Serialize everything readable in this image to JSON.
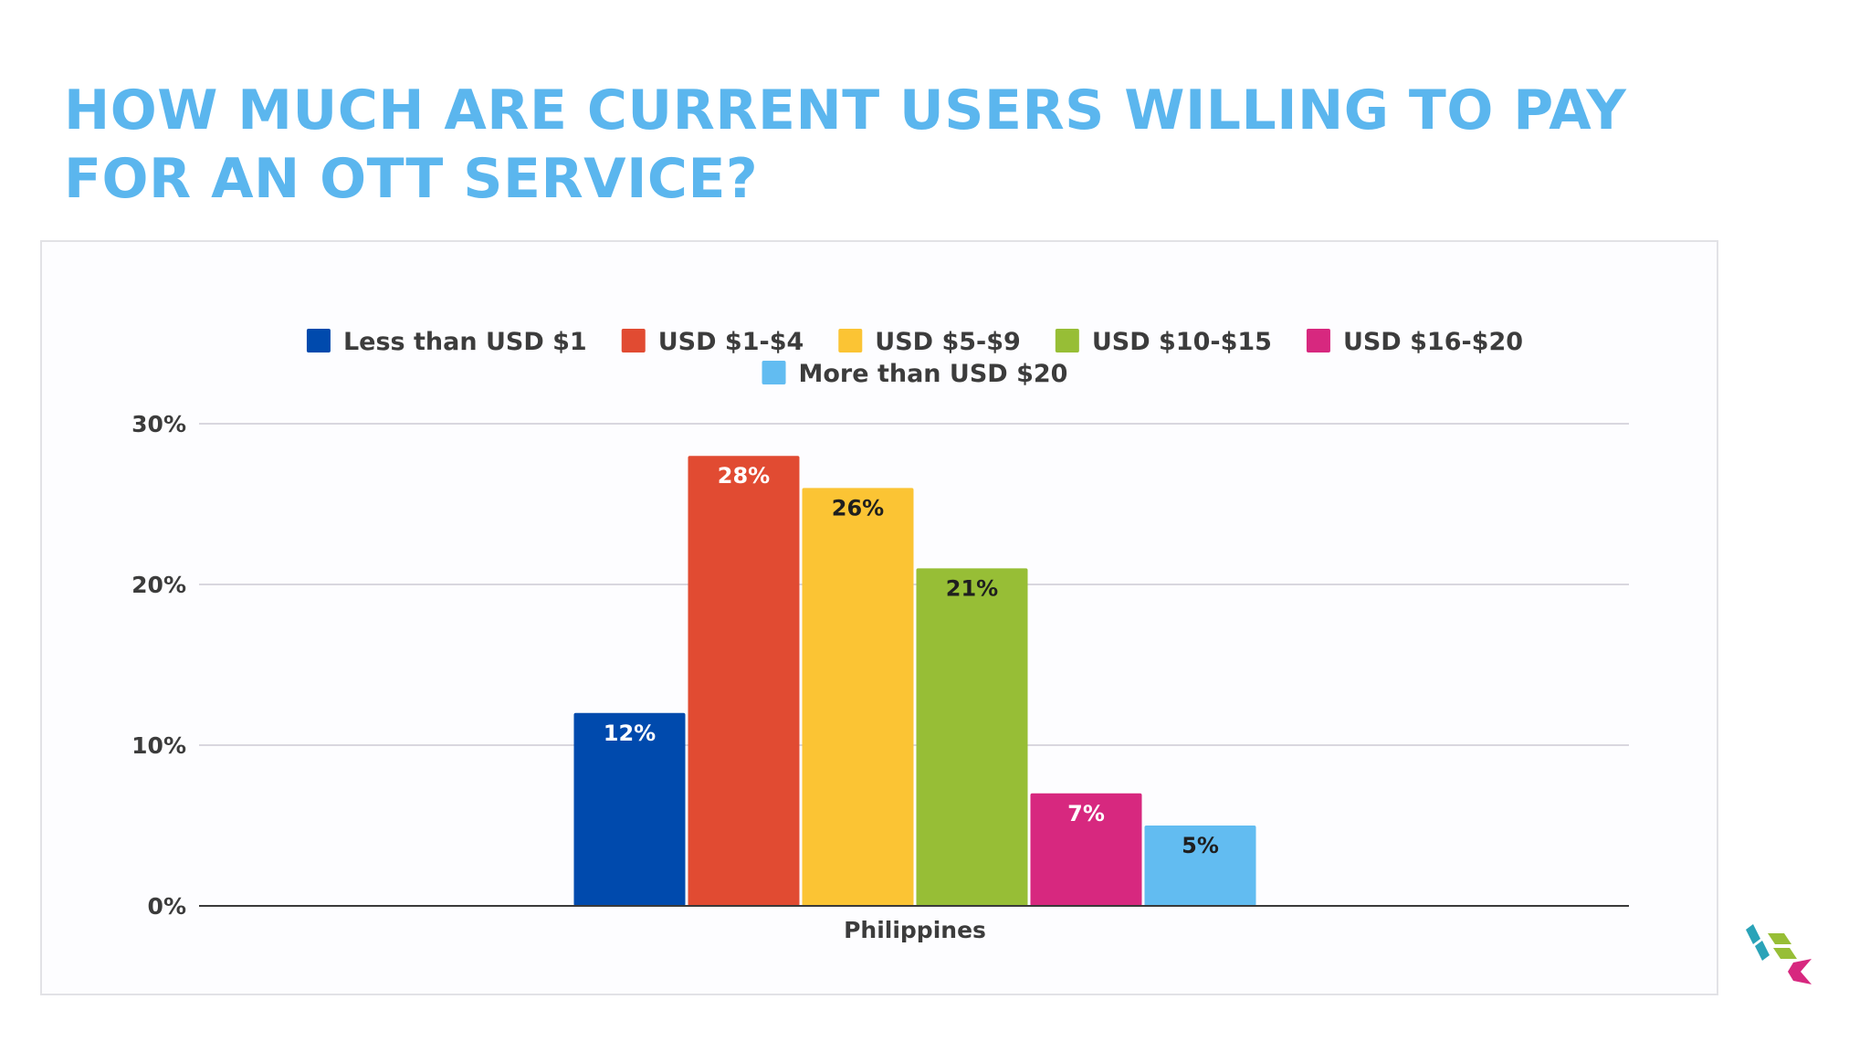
{
  "slide": {
    "title": "HOW MUCH ARE CURRENT USERS WILLING TO PAY FOR AN OTT SERVICE?"
  },
  "chart_data": {
    "type": "bar",
    "title": "",
    "xlabel": "",
    "ylabel": "",
    "categories": [
      "Philippines"
    ],
    "series": [
      {
        "name": "Less than USD $1",
        "values": [
          12
        ],
        "label": "12%",
        "color": "#004aad",
        "label_color": "#ffffff"
      },
      {
        "name": "USD $1-$4",
        "values": [
          28
        ],
        "label": "28%",
        "color": "#e14b32",
        "label_color": "#ffffff"
      },
      {
        "name": "USD $5-$9",
        "values": [
          26
        ],
        "label": "26%",
        "color": "#fbc434",
        "label_color": "#1f1f1f"
      },
      {
        "name": "USD $10-$15",
        "values": [
          21
        ],
        "label": "21%",
        "color": "#97be36",
        "label_color": "#1f1f1f"
      },
      {
        "name": "USD $16-$20",
        "values": [
          7
        ],
        "label": "7%",
        "color": "#d7287f",
        "label_color": "#ffffff"
      },
      {
        "name": "More than USD $20",
        "values": [
          5
        ],
        "label": "5%",
        "color": "#62bcf1",
        "label_color": "#1f1f1f"
      }
    ],
    "yticks": [
      {
        "value": 0,
        "label": "0%"
      },
      {
        "value": 10,
        "label": "10%"
      },
      {
        "value": 20,
        "label": "20%"
      },
      {
        "value": 30,
        "label": "30%"
      }
    ],
    "ylim": [
      0,
      30
    ],
    "grid": true,
    "legend_position": "top"
  },
  "logo": {
    "colors": [
      "#2aa3b8",
      "#97be36",
      "#d7287f"
    ]
  }
}
